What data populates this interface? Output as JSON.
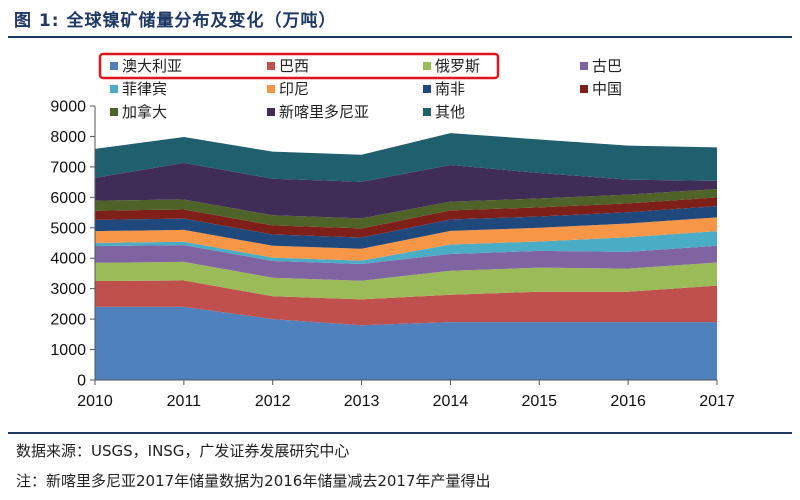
{
  "header": {
    "title": "图 1:  全球镍矿储量分布及变化（万吨）"
  },
  "footer": {
    "source": "数据来源：USGS，INSG，广发证券发展研究中心",
    "note": "注：新喀里多尼亚2017年储量数据为2016年储量减去2017年产量得出"
  },
  "chart_data": {
    "type": "area",
    "stacked": true,
    "x": [
      "2010",
      "2011",
      "2012",
      "2013",
      "2014",
      "2015",
      "2016",
      "2017"
    ],
    "ylim": [
      0,
      9000
    ],
    "yticks": [
      "0",
      "1000",
      "2000",
      "3000",
      "4000",
      "5000",
      "6000",
      "7000",
      "8000",
      "9000"
    ],
    "legend_highlight": {
      "color": "#e0161c",
      "first_index": 0,
      "last_index": 2
    },
    "series": [
      {
        "name": "澳大利亚",
        "color": "#4f81bd",
        "values": [
          2400,
          2400,
          2000,
          1800,
          1900,
          1900,
          1900,
          1900
        ]
      },
      {
        "name": "巴西",
        "color": "#c0504d",
        "values": [
          850,
          870,
          750,
          850,
          900,
          1000,
          1000,
          1200
        ]
      },
      {
        "name": "俄罗斯",
        "color": "#9bbb59",
        "values": [
          600,
          610,
          610,
          610,
          790,
          790,
          760,
          760
        ]
      },
      {
        "name": "古巴",
        "color": "#8064a2",
        "values": [
          550,
          550,
          550,
          550,
          550,
          550,
          550,
          550
        ]
      },
      {
        "name": "菲律宾",
        "color": "#4bacc6",
        "values": [
          100,
          110,
          110,
          110,
          310,
          310,
          480,
          480
        ]
      },
      {
        "name": "印尼",
        "color": "#f79646",
        "values": [
          390,
          390,
          390,
          390,
          450,
          450,
          450,
          450
        ]
      },
      {
        "name": "南非",
        "color": "#1f497d",
        "values": [
          370,
          370,
          370,
          370,
          370,
          370,
          370,
          370
        ]
      },
      {
        "name": "中国",
        "color": "#7f1f1a",
        "values": [
          300,
          300,
          300,
          300,
          300,
          300,
          290,
          290
        ]
      },
      {
        "name": "加拿大",
        "color": "#4f6228",
        "values": [
          330,
          330,
          330,
          330,
          290,
          290,
          290,
          270
        ]
      },
      {
        "name": "新喀里多尼亚",
        "color": "#3f2d57",
        "values": [
          750,
          1200,
          1200,
          1200,
          1200,
          840,
          490,
          270
        ]
      },
      {
        "name": "其他",
        "color": "#205f6e",
        "values": [
          950,
          850,
          890,
          890,
          1050,
          1100,
          1120,
          1100
        ]
      }
    ]
  }
}
